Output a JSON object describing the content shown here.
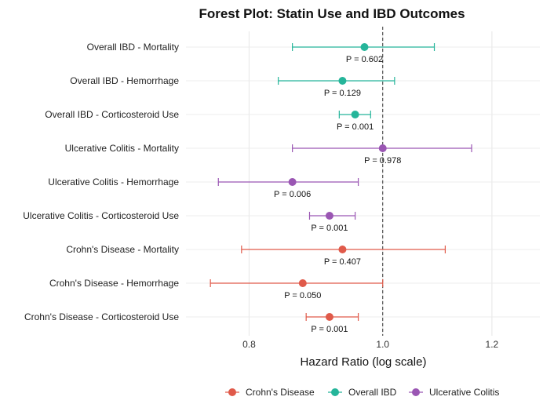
{
  "chart_data": {
    "type": "forest",
    "title": "Forest Plot: Statin Use and IBD Outcomes",
    "xlabel": "Hazard Ratio (log scale)",
    "x_scale": "log",
    "xlim": [
      0.72,
      1.3
    ],
    "x_ticks": [
      0.8,
      1.0,
      1.2
    ],
    "x_tick_labels": [
      "0.8",
      "1.0",
      "1.2"
    ],
    "reference_line": 1.0,
    "grid": true,
    "legend_position": "bottom",
    "colors": {
      "Crohn's Disease": "#e05a4a",
      "Overall IBD": "#25b59a",
      "Ulcerative Colitis": "#9a56b3"
    },
    "legend": [
      "Crohn's Disease",
      "Overall IBD",
      "Ulcerative Colitis"
    ],
    "rows": [
      {
        "label": "Overall IBD - Mortality",
        "group": "Overall IBD",
        "hr": 0.97,
        "lower": 0.86,
        "upper": 1.09,
        "p_label": "P = 0.602"
      },
      {
        "label": "Overall IBD - Hemorrhage",
        "group": "Overall IBD",
        "hr": 0.935,
        "lower": 0.84,
        "upper": 1.02,
        "p_label": "P = 0.129"
      },
      {
        "label": "Overall IBD - Corticosteroid Use",
        "group": "Overall IBD",
        "hr": 0.955,
        "lower": 0.93,
        "upper": 0.98,
        "p_label": "P = 0.001"
      },
      {
        "label": "Ulcerative Colitis - Mortality",
        "group": "Ulcerative Colitis",
        "hr": 1.0,
        "lower": 0.86,
        "upper": 1.16,
        "p_label": "P = 0.978"
      },
      {
        "label": "Ulcerative Colitis - Hemorrhage",
        "group": "Ulcerative Colitis",
        "hr": 0.86,
        "lower": 0.76,
        "upper": 0.96,
        "p_label": "P = 0.006"
      },
      {
        "label": "Ulcerative Colitis - Corticosteroid Use",
        "group": "Ulcerative Colitis",
        "hr": 0.915,
        "lower": 0.885,
        "upper": 0.955,
        "p_label": "P = 0.001"
      },
      {
        "label": "Crohn's Disease - Mortality",
        "group": "Crohn's Disease",
        "hr": 0.935,
        "lower": 0.79,
        "upper": 1.11,
        "p_label": "P = 0.407"
      },
      {
        "label": "Crohn's Disease - Hemorrhage",
        "group": "Crohn's Disease",
        "hr": 0.875,
        "lower": 0.75,
        "upper": 1.0,
        "p_label": "P = 0.050"
      },
      {
        "label": "Crohn's Disease - Corticosteroid Use",
        "group": "Crohn's Disease",
        "hr": 0.915,
        "lower": 0.88,
        "upper": 0.96,
        "p_label": "P = 0.001"
      }
    ]
  }
}
